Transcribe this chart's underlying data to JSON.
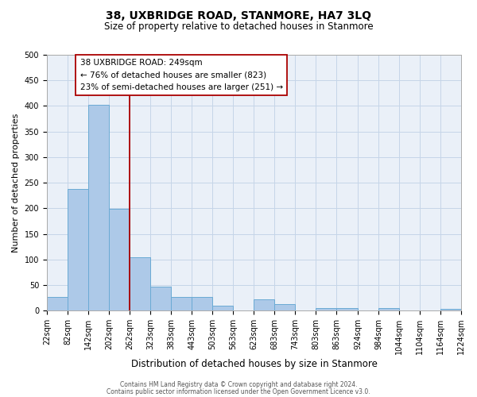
{
  "title": "38, UXBRIDGE ROAD, STANMORE, HA7 3LQ",
  "subtitle": "Size of property relative to detached houses in Stanmore",
  "xlabel": "Distribution of detached houses by size in Stanmore",
  "ylabel": "Number of detached properties",
  "bin_edges": [
    22,
    82,
    142,
    202,
    262,
    323,
    383,
    443,
    503,
    563,
    623,
    683,
    743,
    803,
    863,
    924,
    984,
    1044,
    1104,
    1164,
    1224
  ],
  "bin_labels": [
    "22sqm",
    "82sqm",
    "142sqm",
    "202sqm",
    "262sqm",
    "323sqm",
    "383sqm",
    "443sqm",
    "503sqm",
    "563sqm",
    "623sqm",
    "683sqm",
    "743sqm",
    "803sqm",
    "863sqm",
    "924sqm",
    "984sqm",
    "1044sqm",
    "1104sqm",
    "1164sqm",
    "1224sqm"
  ],
  "counts": [
    27,
    237,
    403,
    199,
    104,
    47,
    26,
    26,
    9,
    0,
    22,
    12,
    0,
    5,
    5,
    0,
    5,
    0,
    0,
    4
  ],
  "bar_color": "#adc9e8",
  "bar_edge_color": "#6aaad4",
  "vline_color": "#aa0000",
  "vline_x": 262,
  "ylim": [
    0,
    500
  ],
  "yticks": [
    0,
    50,
    100,
    150,
    200,
    250,
    300,
    350,
    400,
    450,
    500
  ],
  "annotation_title": "38 UXBRIDGE ROAD: 249sqm",
  "annotation_line1": "← 76% of detached houses are smaller (823)",
  "annotation_line2": "23% of semi-detached houses are larger (251) →",
  "footer1": "Contains HM Land Registry data © Crown copyright and database right 2024.",
  "footer2": "Contains public sector information licensed under the Open Government Licence v3.0.",
  "background_color": "#eaf0f8",
  "grid_color": "#c5d5e8",
  "title_fontsize": 10,
  "subtitle_fontsize": 8.5,
  "ylabel_fontsize": 8,
  "xlabel_fontsize": 8.5,
  "tick_fontsize": 7,
  "ann_fontsize": 7.5,
  "footer_fontsize": 5.5
}
